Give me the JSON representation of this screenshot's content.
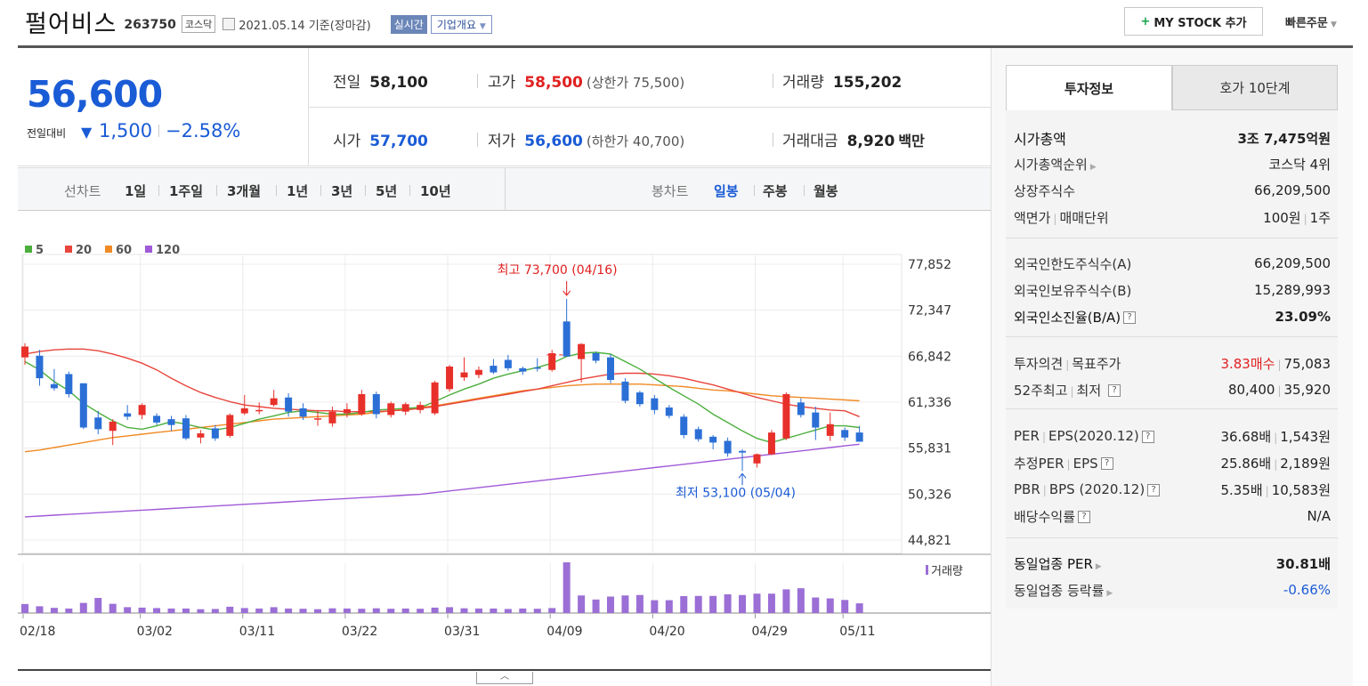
{
  "header": {
    "name": "펄어비스",
    "code": "263750",
    "market": "코스닥",
    "date": "2021.05.14 기준(장마감)",
    "realtime": "실시간",
    "corp_btn": "기업개요",
    "mystock": "MY STOCK 추가",
    "quick_order": "빠른주문"
  },
  "price": {
    "current": "56,600",
    "prev_label": "전일대비",
    "change": "1,500",
    "change_pct": "−2.58%",
    "prev_close_label": "전일",
    "prev_close": "58,100",
    "high_label": "고가",
    "high": "58,500",
    "upper_limit": "(상한가 75,500)",
    "volume_label": "거래량",
    "volume": "155,202",
    "open_label": "시가",
    "open": "57,700",
    "low_label": "저가",
    "low": "56,600",
    "lower_limit": "(하한가 40,700)",
    "amount_label": "거래대금",
    "amount": "8,920",
    "amount_unit": "백만"
  },
  "periods": {
    "line_label": "선차트",
    "line": [
      "1일",
      "1주일",
      "3개월",
      "1년",
      "3년",
      "5년",
      "10년"
    ],
    "candle_label": "봉차트",
    "candle": [
      "일봉",
      "주봉",
      "월봉"
    ],
    "active_candle": "일봉"
  },
  "chart_data": {
    "type": "candlestick",
    "legend": [
      "5",
      "20",
      "60",
      "120"
    ],
    "legend_colors": [
      "#4caf3d",
      "#e8453c",
      "#f08a24",
      "#a05ad8"
    ],
    "ylim": [
      44821,
      77852
    ],
    "yticks": [
      "77,852",
      "72,347",
      "66,842",
      "61,336",
      "55,831",
      "50,326",
      "44,821"
    ],
    "xticks": [
      "02/18",
      "03/02",
      "03/11",
      "03/22",
      "03/31",
      "04/09",
      "04/20",
      "04/29",
      "05/11"
    ],
    "volume_label": "거래량",
    "high_annotation": "최고 73,700 (04/16)",
    "low_annotation": "최저 53,100 (05/04)",
    "up_color": "#e8302a",
    "down_color": "#2b6fd6",
    "candles": [
      {
        "o": 66700,
        "h": 68400,
        "l": 65800,
        "c": 68000
      },
      {
        "o": 66900,
        "h": 67600,
        "l": 63300,
        "c": 64200
      },
      {
        "o": 63500,
        "h": 65300,
        "l": 62700,
        "c": 63000
      },
      {
        "o": 64700,
        "h": 65000,
        "l": 61900,
        "c": 62300
      },
      {
        "o": 63600,
        "h": 63600,
        "l": 58100,
        "c": 58300
      },
      {
        "o": 59500,
        "h": 60300,
        "l": 57500,
        "c": 58100
      },
      {
        "o": 57900,
        "h": 59300,
        "l": 56200,
        "c": 59000
      },
      {
        "o": 60000,
        "h": 61000,
        "l": 59200,
        "c": 59600
      },
      {
        "o": 59800,
        "h": 61200,
        "l": 59300,
        "c": 61000
      },
      {
        "o": 59700,
        "h": 60000,
        "l": 58600,
        "c": 58900
      },
      {
        "o": 59300,
        "h": 59700,
        "l": 57900,
        "c": 58600
      },
      {
        "o": 59400,
        "h": 59800,
        "l": 56800,
        "c": 57000
      },
      {
        "o": 57100,
        "h": 58000,
        "l": 56400,
        "c": 57600
      },
      {
        "o": 58200,
        "h": 58600,
        "l": 56700,
        "c": 57000
      },
      {
        "o": 57300,
        "h": 60000,
        "l": 57100,
        "c": 59800
      },
      {
        "o": 60000,
        "h": 62200,
        "l": 59800,
        "c": 60600
      },
      {
        "o": 60300,
        "h": 61300,
        "l": 59900,
        "c": 60400
      },
      {
        "o": 61000,
        "h": 62800,
        "l": 60800,
        "c": 61800
      },
      {
        "o": 61900,
        "h": 62400,
        "l": 59600,
        "c": 60200
      },
      {
        "o": 60600,
        "h": 61200,
        "l": 59200,
        "c": 59600
      },
      {
        "o": 59400,
        "h": 60400,
        "l": 58500,
        "c": 59400
      },
      {
        "o": 58800,
        "h": 60800,
        "l": 58400,
        "c": 60200
      },
      {
        "o": 60000,
        "h": 61200,
        "l": 59500,
        "c": 60500
      },
      {
        "o": 59900,
        "h": 62800,
        "l": 59700,
        "c": 62300
      },
      {
        "o": 62300,
        "h": 62600,
        "l": 59400,
        "c": 59900
      },
      {
        "o": 59800,
        "h": 61400,
        "l": 59500,
        "c": 61200
      },
      {
        "o": 60200,
        "h": 61300,
        "l": 59800,
        "c": 61100
      },
      {
        "o": 60400,
        "h": 61400,
        "l": 60000,
        "c": 61000
      },
      {
        "o": 60000,
        "h": 63900,
        "l": 59800,
        "c": 63700
      },
      {
        "o": 62900,
        "h": 65800,
        "l": 62600,
        "c": 65600
      },
      {
        "o": 64300,
        "h": 66700,
        "l": 63900,
        "c": 64900
      },
      {
        "o": 64600,
        "h": 65600,
        "l": 64200,
        "c": 65200
      },
      {
        "o": 65700,
        "h": 66500,
        "l": 64700,
        "c": 64900
      },
      {
        "o": 66400,
        "h": 67000,
        "l": 65100,
        "c": 65400
      },
      {
        "o": 65400,
        "h": 65600,
        "l": 64600,
        "c": 65000
      },
      {
        "o": 65500,
        "h": 66600,
        "l": 65000,
        "c": 65400
      },
      {
        "o": 65200,
        "h": 67600,
        "l": 65000,
        "c": 67200
      },
      {
        "o": 71000,
        "h": 73700,
        "l": 66800,
        "c": 66800
      },
      {
        "o": 66500,
        "h": 68400,
        "l": 63700,
        "c": 68300
      },
      {
        "o": 67200,
        "h": 67400,
        "l": 66000,
        "c": 66300
      },
      {
        "o": 66700,
        "h": 67100,
        "l": 63600,
        "c": 64000
      },
      {
        "o": 63800,
        "h": 64200,
        "l": 61200,
        "c": 61500
      },
      {
        "o": 62500,
        "h": 62700,
        "l": 60800,
        "c": 61100
      },
      {
        "o": 61800,
        "h": 62200,
        "l": 59900,
        "c": 60400
      },
      {
        "o": 60700,
        "h": 61000,
        "l": 59400,
        "c": 59700
      },
      {
        "o": 59600,
        "h": 59900,
        "l": 57000,
        "c": 57400
      },
      {
        "o": 58100,
        "h": 58400,
        "l": 56600,
        "c": 56900
      },
      {
        "o": 57200,
        "h": 57400,
        "l": 55700,
        "c": 56500
      },
      {
        "o": 56700,
        "h": 57100,
        "l": 54800,
        "c": 55200
      },
      {
        "o": 55500,
        "h": 55700,
        "l": 53100,
        "c": 55300
      },
      {
        "o": 54000,
        "h": 55200,
        "l": 53500,
        "c": 55100
      },
      {
        "o": 55100,
        "h": 58000,
        "l": 55000,
        "c": 57700
      },
      {
        "o": 57000,
        "h": 62500,
        "l": 56800,
        "c": 62300
      },
      {
        "o": 61300,
        "h": 61800,
        "l": 59500,
        "c": 59800
      },
      {
        "o": 60100,
        "h": 60800,
        "l": 56800,
        "c": 58300
      },
      {
        "o": 57300,
        "h": 60100,
        "l": 56700,
        "c": 58700
      },
      {
        "o": 58000,
        "h": 58300,
        "l": 56700,
        "c": 57100
      },
      {
        "o": 57700,
        "h": 58500,
        "l": 56600,
        "c": 56600
      }
    ],
    "ma5": [
      66200,
      65200,
      63800,
      62700,
      61200,
      60100,
      59100,
      58300,
      58100,
      58500,
      59000,
      58700,
      58300,
      58000,
      58300,
      58800,
      59300,
      59700,
      60100,
      60300,
      60100,
      59900,
      59900,
      60100,
      60400,
      60500,
      60600,
      60700,
      61400,
      62200,
      62900,
      63500,
      64200,
      64700,
      65100,
      65500,
      66000,
      66800,
      67200,
      67300,
      67100,
      66200,
      65300,
      64200,
      63100,
      62100,
      61100,
      59900,
      58900,
      57900,
      57000,
      56500,
      57000,
      57500,
      58000,
      58500,
      58500,
      58300
    ],
    "ma20": [
      67100,
      67400,
      67600,
      67700,
      67700,
      67500,
      67100,
      66600,
      66000,
      65200,
      64200,
      63300,
      62500,
      61900,
      61400,
      61000,
      60800,
      60600,
      60500,
      60400,
      60300,
      60300,
      60200,
      60200,
      60200,
      60300,
      60400,
      60600,
      60800,
      61100,
      61400,
      61700,
      62000,
      62300,
      62600,
      62900,
      63300,
      63700,
      64100,
      64400,
      64700,
      64800,
      64800,
      64700,
      64500,
      64200,
      63800,
      63400,
      62900,
      62400,
      61900,
      61500,
      61100,
      60800,
      60600,
      60400,
      60300,
      59600
    ],
    "ma60": [
      55400,
      55600,
      55900,
      56200,
      56500,
      56800,
      57100,
      57300,
      57500,
      57700,
      57900,
      58100,
      58300,
      58500,
      58700,
      58900,
      59100,
      59300,
      59400,
      59500,
      59600,
      59700,
      59800,
      59900,
      60100,
      60300,
      60500,
      60700,
      60900,
      61200,
      61500,
      61800,
      62100,
      62400,
      62700,
      62900,
      63100,
      63300,
      63400,
      63500,
      63500,
      63500,
      63500,
      63400,
      63300,
      63200,
      63000,
      62800,
      62700,
      62500,
      62300,
      62100,
      62000,
      61900,
      61800,
      61700,
      61600,
      61500
    ],
    "ma120": [
      47600,
      47700,
      47800,
      47900,
      48000,
      48100,
      48200,
      48300,
      48400,
      48500,
      48600,
      48700,
      48800,
      48900,
      49000,
      49100,
      49200,
      49300,
      49400,
      49500,
      49600,
      49700,
      49800,
      49900,
      50000,
      50100,
      50200,
      50300,
      50500,
      50700,
      50900,
      51100,
      51300,
      51500,
      51700,
      51900,
      52100,
      52300,
      52500,
      52700,
      52900,
      53100,
      53300,
      53500,
      53700,
      53900,
      54100,
      54300,
      54500,
      54700,
      54900,
      55100,
      55300,
      55500,
      55700,
      55900,
      56100,
      56300
    ],
    "volumes": [
      4.0,
      3.0,
      2.3,
      2.0,
      4.5,
      6.7,
      4.1,
      2.6,
      2.4,
      2.2,
      2.0,
      2.0,
      1.7,
      1.8,
      2.8,
      2.2,
      2.0,
      2.6,
      2.0,
      1.9,
      1.7,
      2.1,
      2.0,
      1.9,
      2.1,
      1.9,
      2.0,
      1.9,
      2.4,
      2.6,
      2.1,
      2.0,
      2.0,
      1.8,
      2.0,
      1.9,
      2.2,
      22.5,
      7.8,
      6.0,
      7.3,
      7.8,
      8.0,
      5.7,
      5.7,
      7.5,
      7.6,
      7.6,
      8.3,
      8.0,
      8.6,
      8.6,
      10.5,
      11.0,
      6.9,
      6.5,
      5.8,
      4.3
    ]
  },
  "invest": {
    "tabs": [
      "투자정보",
      "호가 10단계"
    ],
    "market_cap_label": "시가총액",
    "market_cap": "3조 7,475억원",
    "cap_rank_label": "시가총액순위",
    "cap_rank": "코스닥 4위",
    "shares_label": "상장주식수",
    "shares": "66,209,500",
    "par_label": "액면가",
    "unit_label": "매매단위",
    "par": "100원",
    "unit": "1주",
    "foreign_limit_label": "외국인한도주식수(A)",
    "foreign_limit": "66,209,500",
    "foreign_hold_label": "외국인보유주식수(B)",
    "foreign_hold": "15,289,993",
    "foreign_rate_label": "외국인소진율(B/A)",
    "foreign_rate": "23.09%",
    "opinion_label": "투자의견",
    "target_label": "목표주가",
    "opinion": "3.83매수",
    "target": "75,083",
    "wk52_high_label": "52주최고",
    "wk52_low_label": "최저",
    "wk52_high": "80,400",
    "wk52_low": "35,920",
    "per_label": "PER",
    "eps_label": "EPS(2020.12)",
    "per": "36.68배",
    "eps": "1,543원",
    "est_per_label": "추정PER",
    "est_eps_label": "EPS",
    "est_per": "25.86배",
    "est_eps": "2,189원",
    "pbr_label": "PBR",
    "bps_label": "BPS (2020.12)",
    "pbr": "5.35배",
    "bps": "10,583원",
    "div_label": "배당수익률",
    "div": "N/A",
    "sector_per_label": "동일업종 PER",
    "sector_per": "30.81배",
    "sector_chg_label": "동일업종 등락률",
    "sector_chg": "-0.66%"
  }
}
